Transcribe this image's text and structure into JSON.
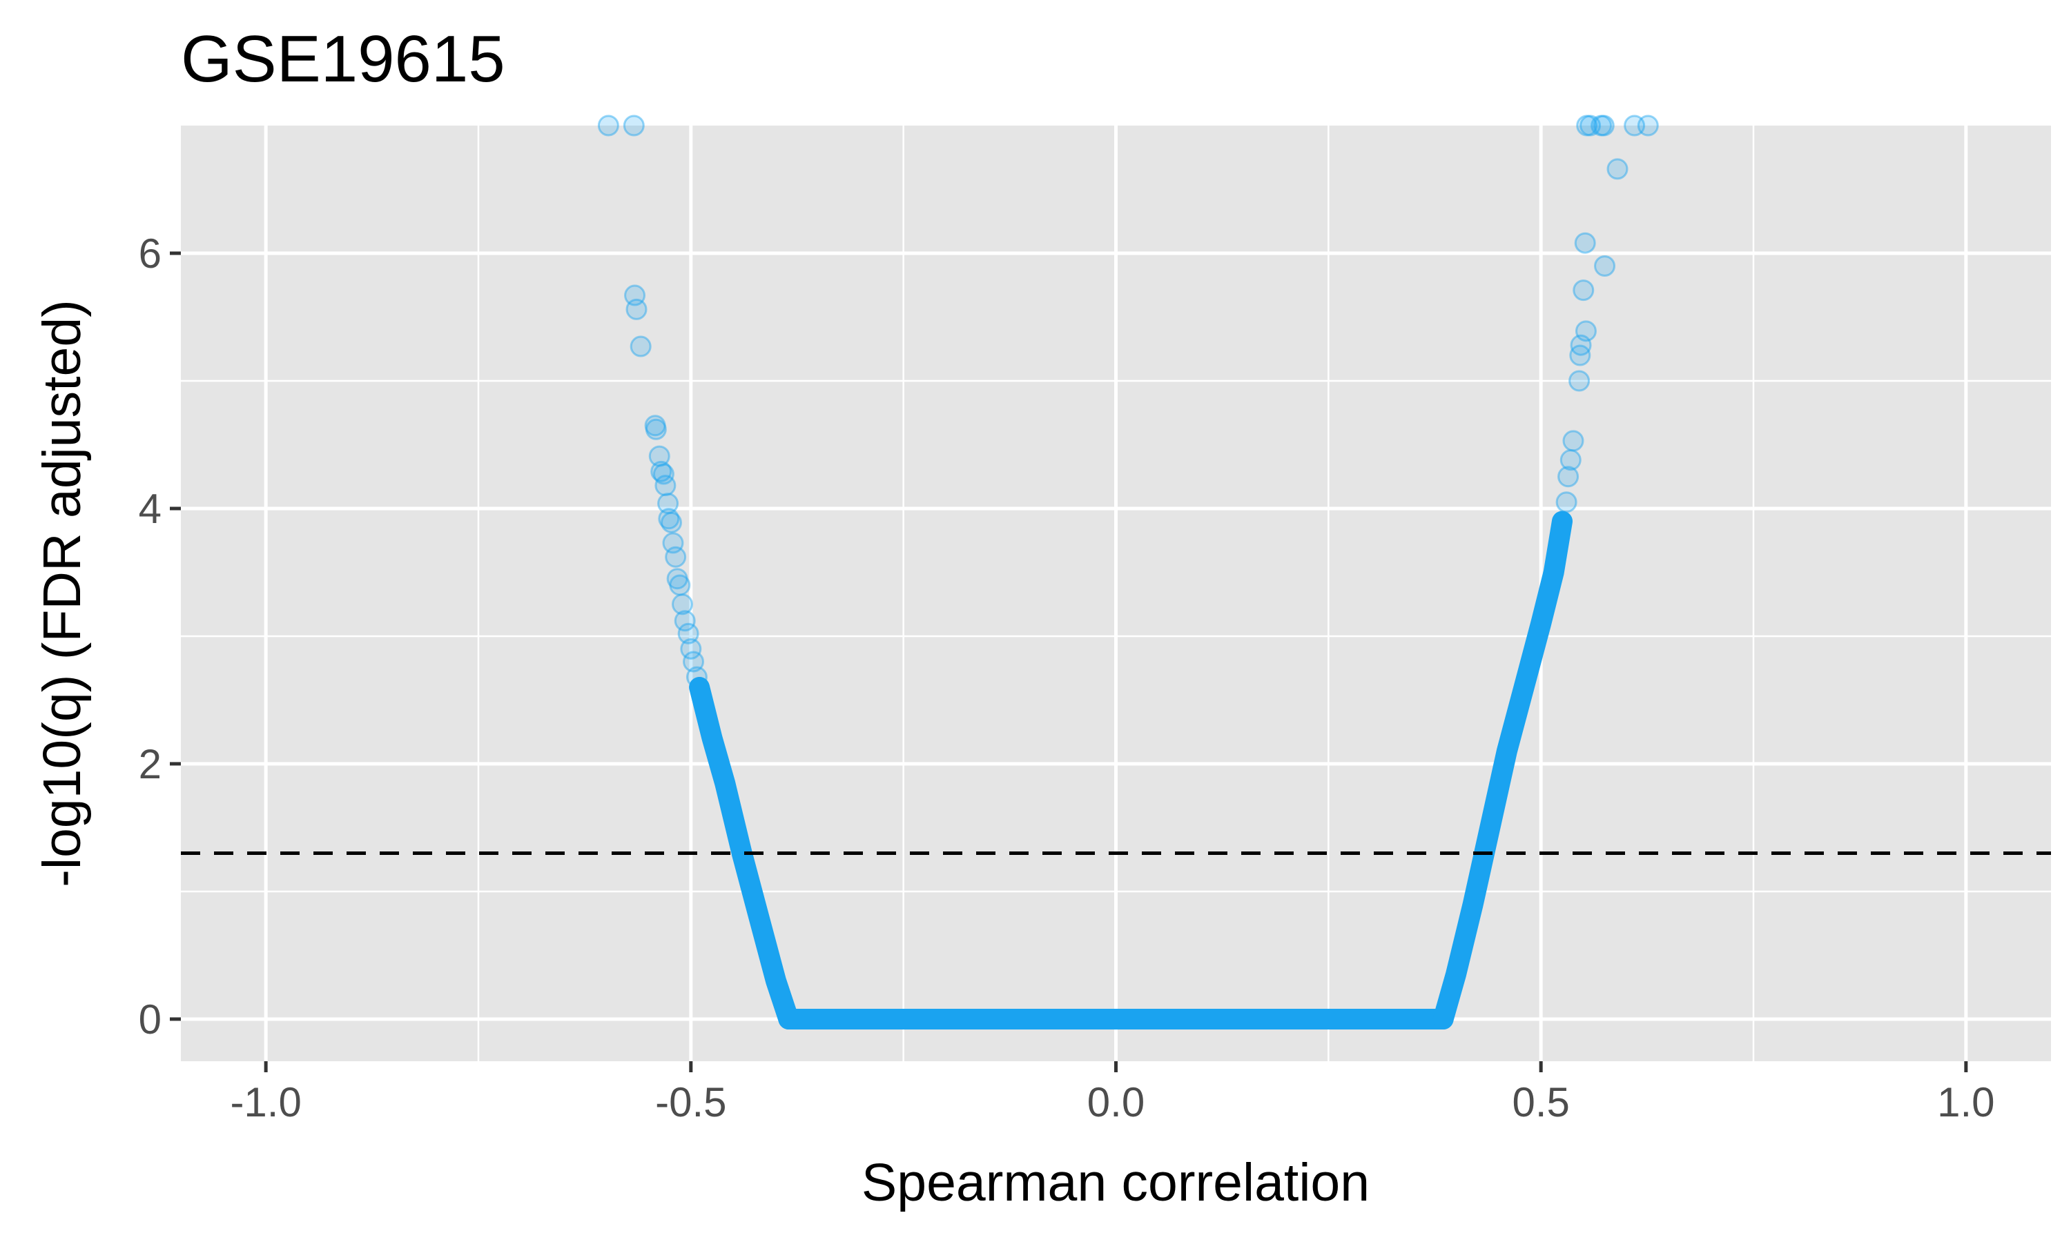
{
  "chart_data": {
    "type": "scatter",
    "title": "GSE19615",
    "xlabel": "Spearman correlation",
    "ylabel": "-log10(q) (FDR adjusted)",
    "xlim": [
      -1.1,
      1.1
    ],
    "ylim": [
      -0.33,
      7.0
    ],
    "x_ticks": [
      -1.0,
      -0.5,
      0.0,
      0.5,
      1.0
    ],
    "x_tick_labels": [
      "-1.0",
      "-0.5",
      "0.0",
      "0.5",
      "1.0"
    ],
    "y_ticks": [
      0,
      2,
      4,
      6
    ],
    "y_tick_labels": [
      "0",
      "2",
      "4",
      "6"
    ],
    "grid": true,
    "legend": "none",
    "point_color": "#1aa3f0",
    "background_color": "#e5e5e5",
    "reference_line": {
      "y": 1.3,
      "style": "dashed",
      "color": "#000000"
    },
    "series": [
      {
        "values_negative_tail": [
          [
            -0.597,
            7.0
          ],
          [
            -0.567,
            7.0
          ],
          [
            -0.566,
            5.67
          ],
          [
            -0.564,
            5.56
          ],
          [
            -0.559,
            5.27
          ],
          [
            -0.542,
            4.65
          ],
          [
            -0.541,
            4.62
          ],
          [
            -0.537,
            4.41
          ],
          [
            -0.535,
            4.29
          ],
          [
            -0.532,
            4.27
          ],
          [
            -0.53,
            4.18
          ],
          [
            -0.527,
            4.04
          ],
          [
            -0.526,
            3.92
          ],
          [
            -0.523,
            3.89
          ],
          [
            -0.521,
            3.73
          ],
          [
            -0.518,
            3.62
          ],
          [
            -0.516,
            3.45
          ],
          [
            -0.513,
            3.4
          ],
          [
            -0.51,
            3.25
          ],
          [
            -0.507,
            3.12
          ],
          [
            -0.503,
            3.02
          ],
          [
            -0.5,
            2.9
          ],
          [
            -0.497,
            2.8
          ],
          [
            -0.493,
            2.68
          ]
        ],
        "values_positive_tail": [
          [
            0.53,
            4.05
          ],
          [
            0.532,
            4.25
          ],
          [
            0.535,
            4.38
          ],
          [
            0.538,
            4.53
          ],
          [
            0.545,
            5.0
          ],
          [
            0.546,
            5.2
          ],
          [
            0.547,
            5.28
          ],
          [
            0.553,
            5.39
          ],
          [
            0.55,
            5.71
          ],
          [
            0.552,
            6.08
          ],
          [
            0.575,
            5.9
          ],
          [
            0.554,
            7.0
          ],
          [
            0.558,
            7.0
          ],
          [
            0.571,
            7.0
          ],
          [
            0.574,
            7.0
          ],
          [
            0.59,
            6.66
          ],
          [
            0.61,
            7.0
          ],
          [
            0.626,
            7.0
          ]
        ],
        "curve_negative": {
          "q0_edge": -0.385,
          "points": [
            [
              -0.385,
              0.0
            ],
            [
              -0.4,
              0.3
            ],
            [
              -0.42,
              0.8
            ],
            [
              -0.44,
              1.3
            ],
            [
              -0.46,
              1.85
            ],
            [
              -0.475,
              2.2
            ],
            [
              -0.49,
              2.6
            ]
          ]
        },
        "curve_positive": {
          "q0_edge": 0.385,
          "points": [
            [
              0.385,
              0.0
            ],
            [
              0.4,
              0.35
            ],
            [
              0.42,
              0.9
            ],
            [
              0.44,
              1.5
            ],
            [
              0.46,
              2.1
            ],
            [
              0.48,
              2.6
            ],
            [
              0.5,
              3.1
            ],
            [
              0.515,
              3.5
            ],
            [
              0.525,
              3.9
            ]
          ]
        },
        "flat_segment": {
          "x_from": -0.385,
          "x_to": 0.385,
          "y": 0.0
        }
      }
    ]
  }
}
